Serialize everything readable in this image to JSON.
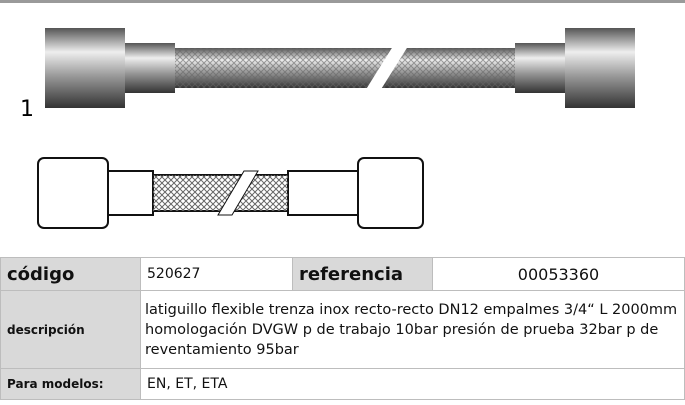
{
  "figure": {
    "number": "1"
  },
  "table": {
    "rows": [
      [
        "código",
        "520627",
        "referencia",
        "00053360"
      ],
      [
        "descripción",
        "latiguillo flexible  trenza inox recto-recto DN12 empalmes 3/4“ L 2000mm homologación DVGW p de trabajo 10bar presión de prueba 32bar p de reventamiento 95bar"
      ],
      [
        "Para modelos:",
        "EN, ET, ETA"
      ]
    ]
  }
}
